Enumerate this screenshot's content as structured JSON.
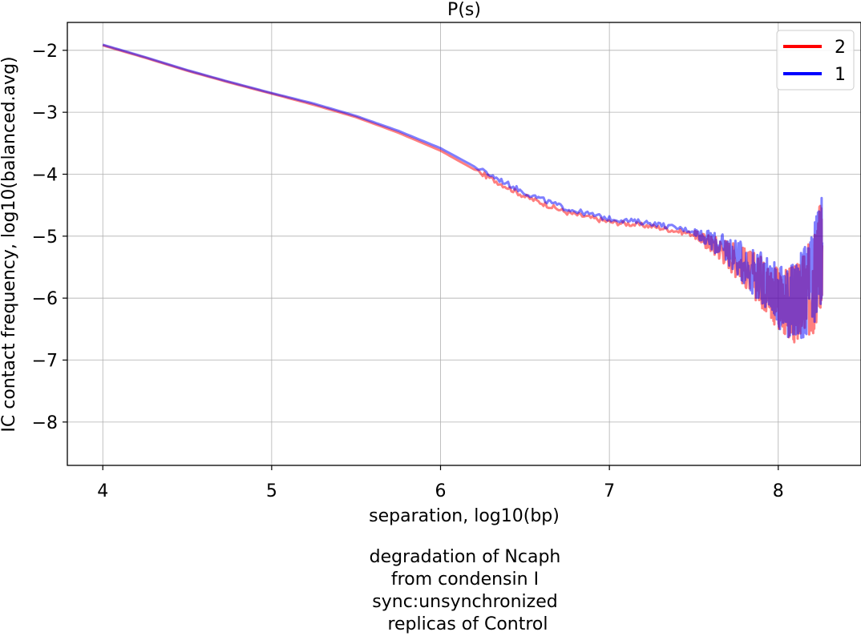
{
  "chart_data": {
    "type": "line",
    "title": "P(s)",
    "xlabel": "separation, log10(bp)",
    "ylabel": "IC contact frequency, log10(balanced.avg)",
    "xlim": [
      3.79,
      8.49
    ],
    "ylim": [
      -8.7,
      -1.55
    ],
    "x_ticks": [
      4,
      5,
      6,
      7,
      8
    ],
    "x_tick_labels": [
      "4",
      "5",
      "6",
      "7",
      "8"
    ],
    "y_ticks": [
      -2,
      -3,
      -4,
      -5,
      -6,
      -7,
      -8
    ],
    "y_tick_labels": [
      "−2",
      "−3",
      "−4",
      "−5",
      "−6",
      "−7",
      "−8"
    ],
    "grid": true,
    "legend_position": "top-right",
    "series": [
      {
        "name": "2",
        "color": "#ff0000",
        "x": [
          4.0,
          4.25,
          4.5,
          4.75,
          5.0,
          5.25,
          5.5,
          5.75,
          6.0,
          6.25,
          6.5,
          6.75,
          7.0,
          7.25,
          7.5,
          7.7,
          7.9,
          8.0,
          8.1,
          8.2,
          8.26
        ],
        "y": [
          -1.92,
          -2.12,
          -2.33,
          -2.52,
          -2.7,
          -2.88,
          -3.08,
          -3.33,
          -3.62,
          -4.0,
          -4.36,
          -4.62,
          -4.77,
          -4.84,
          -4.97,
          -5.27,
          -5.73,
          -6.02,
          -6.12,
          -5.85,
          -5.15
        ]
      },
      {
        "name": "1",
        "color": "#0000ff",
        "x": [
          4.0,
          4.25,
          4.5,
          4.75,
          5.0,
          5.25,
          5.5,
          5.75,
          6.0,
          6.25,
          6.5,
          6.75,
          7.0,
          7.25,
          7.5,
          7.7,
          7.9,
          8.0,
          8.1,
          8.2,
          8.26
        ],
        "y": [
          -1.91,
          -2.11,
          -2.32,
          -2.51,
          -2.69,
          -2.86,
          -3.06,
          -3.3,
          -3.58,
          -3.95,
          -4.3,
          -4.56,
          -4.72,
          -4.79,
          -4.92,
          -5.22,
          -5.68,
          -5.98,
          -6.08,
          -5.8,
          -5.1
        ]
      }
    ],
    "caption_lines": [
      "degradation of Ncaph",
      "from condensin I",
      "sync:unsynchronized",
      " replicas of Control"
    ]
  }
}
